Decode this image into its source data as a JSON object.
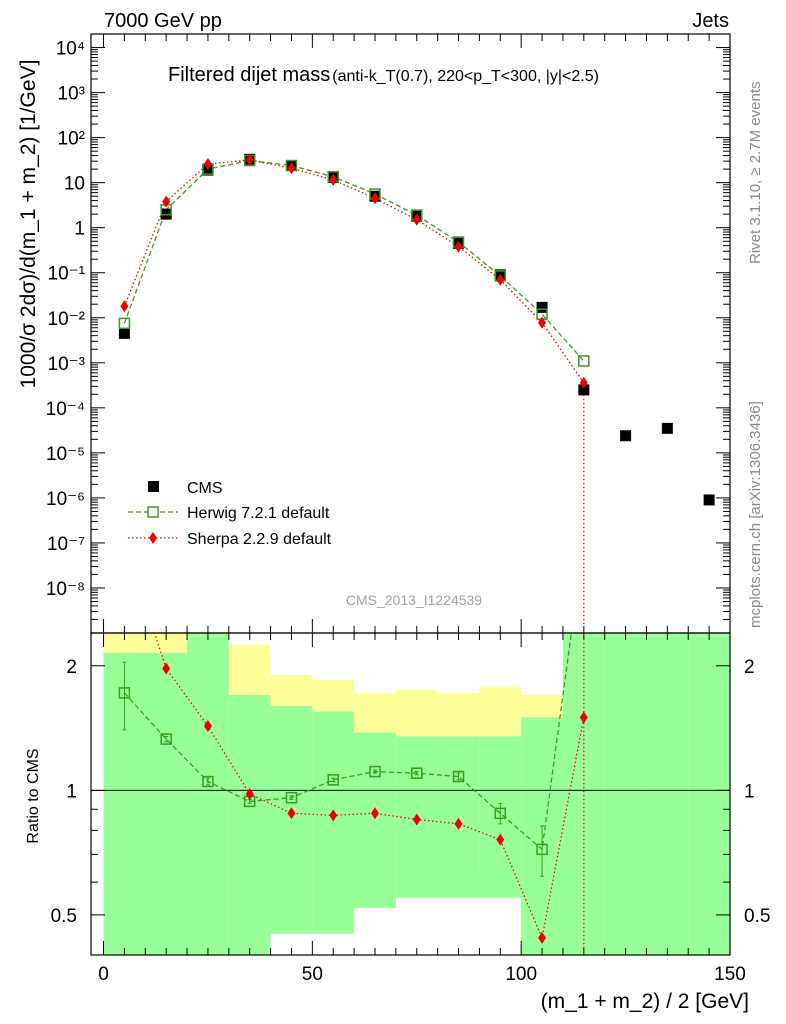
{
  "header": {
    "beam": "7000 GeV pp",
    "process": "Jets"
  },
  "side_labels": {
    "rivet": "Rivet 3.1.10, ≥ 2.7M events",
    "source": "mcplots.cern.ch [arXiv:1306.3436]"
  },
  "watermark": "CMS_2013_I1224539",
  "colors": {
    "cms": "#000000",
    "herwig": "#3a9a1e",
    "sherpa": "#ee0000",
    "band_inner": "#99ff99",
    "band_outer": "#ffff99"
  },
  "chart_data": [
    {
      "type": "scatter",
      "title_main": "Filtered dijet mass",
      "title_detail": "(anti-k_T(0.7), 220<p_T<300, |y|<2.5)",
      "ylabel": "1000/σ 2dσ)/d(m_1 + m_2) [1/GeV]",
      "xlabel": "",
      "xlim": [
        -3,
        150
      ],
      "ylim": [
        1e-09,
        20000.0
      ],
      "yscale": "log",
      "y_tick_labels": [
        "10⁻⁸",
        "10⁻⁷",
        "10⁻⁶",
        "10⁻⁵",
        "10⁻⁴",
        "10⁻³",
        "10⁻²",
        "10⁻¹",
        "1",
        "10",
        "10²",
        "10³",
        "10⁴"
      ],
      "legend_position": "bottom-left",
      "series": [
        {
          "name": "CMS",
          "marker": "filled-square",
          "x": [
            5,
            15,
            25,
            35,
            45,
            55,
            65,
            75,
            85,
            95,
            105,
            115,
            125,
            135,
            145
          ],
          "y": [
            0.0045,
            2.0,
            19,
            33,
            24,
            13,
            5.0,
            1.8,
            0.45,
            0.09,
            0.017,
            0.00025,
            2.4e-05,
            3.5e-05,
            9e-07
          ]
        },
        {
          "name": "Herwig 7.2.1 default",
          "marker": "open-square",
          "line": "dashed",
          "x": [
            5,
            15,
            25,
            35,
            45,
            55,
            65,
            75,
            85,
            95,
            105,
            115
          ],
          "y": [
            0.0075,
            2.5,
            20,
            31,
            24,
            13.5,
            5.6,
            1.9,
            0.48,
            0.085,
            0.012,
            0.0011
          ]
        },
        {
          "name": "Sherpa 2.2.9 default",
          "marker": "filled-diamond",
          "line": "dotted",
          "x": [
            5,
            15,
            25,
            35,
            45,
            55,
            65,
            75,
            85,
            95,
            105,
            115
          ],
          "y": [
            0.018,
            3.8,
            26,
            32,
            21,
            11.5,
            4.5,
            1.5,
            0.38,
            0.07,
            0.0078,
            0.00036
          ]
        }
      ]
    },
    {
      "type": "line",
      "ylabel": "Ratio to CMS",
      "xlabel": "(m_1 + m_2) / 2 [GeV]",
      "xlim": [
        -3,
        150
      ],
      "ylim": [
        0.4,
        2.4
      ],
      "yscale": "log",
      "x_ticks": [
        0,
        50,
        100,
        150
      ],
      "y_ticks": [
        0.5,
        1,
        2
      ],
      "reference_line": 1,
      "bands": {
        "x_edges": [
          0,
          20,
          30,
          40,
          50,
          60,
          70,
          80,
          90,
          100,
          110,
          120,
          130,
          140,
          150
        ],
        "inner_low": [
          0.4,
          0.4,
          0.4,
          0.45,
          0.45,
          0.52,
          0.55,
          0.55,
          0.55,
          0.4,
          0.4,
          0.4,
          0.4,
          0.4
        ],
        "inner_high": [
          2.15,
          2.4,
          1.7,
          1.6,
          1.55,
          1.38,
          1.35,
          1.35,
          1.35,
          1.5,
          2.4,
          2.4,
          2.4,
          2.4
        ],
        "outer_low": [
          0.4,
          0.8,
          0.4,
          0.6,
          0.6,
          0.8,
          0.85,
          0.85,
          0.62,
          0.4,
          0.4,
          0.4,
          0.4,
          0.4
        ],
        "outer_high": [
          2.4,
          2.4,
          2.25,
          1.9,
          1.85,
          1.72,
          1.75,
          1.72,
          1.78,
          1.7,
          2.4,
          2.4,
          2.25,
          2.4
        ]
      },
      "series": [
        {
          "name": "Herwig 7.2.1 default",
          "x": [
            5,
            15,
            25,
            35,
            45,
            55,
            65,
            75,
            85,
            95,
            105,
            115
          ],
          "y": [
            1.72,
            1.33,
            1.05,
            0.94,
            0.96,
            1.06,
            1.11,
            1.1,
            1.08,
            0.88,
            0.72,
            4.0
          ],
          "err": [
            0.32,
            0.02,
            0.02,
            0.01,
            0.01,
            0.01,
            0.01,
            0.01,
            0.02,
            0.05,
            0.1,
            0
          ]
        },
        {
          "name": "Sherpa 2.2.9 default",
          "x": [
            5,
            15,
            25,
            35,
            45,
            55,
            65,
            75,
            85,
            95,
            105,
            115
          ],
          "y": [
            4.0,
            1.97,
            1.43,
            0.98,
            0.88,
            0.87,
            0.88,
            0.85,
            0.83,
            0.76,
            0.44,
            1.5
          ],
          "err": [
            0,
            0,
            0,
            0,
            0,
            0,
            0,
            0,
            0,
            0,
            0,
            0
          ]
        }
      ]
    }
  ]
}
